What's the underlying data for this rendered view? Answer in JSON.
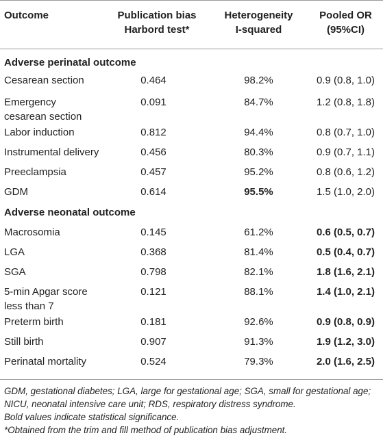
{
  "headers": {
    "outcome": "Outcome",
    "pubbias_1": "Publication bias",
    "pubbias_2": "Harbord test*",
    "het_1": "Heterogeneity",
    "het_2": "I-squared",
    "or_1": "Pooled OR",
    "or_2": "(95%CI)"
  },
  "sections": [
    {
      "title": "Adverse perinatal outcome",
      "rows": [
        {
          "outcome": [
            "Cesarean section"
          ],
          "bias": "0.464",
          "het": "98.2%",
          "or": "0.9 (0.8, 1.0)",
          "het_bold": false,
          "or_bold": false
        },
        {
          "outcome": [
            "Emergency",
            "cesarean section"
          ],
          "bias": "0.091",
          "het": "84.7%",
          "or": "1.2 (0.8, 1.8)",
          "het_bold": false,
          "or_bold": false
        },
        {
          "outcome": [
            "Labor induction"
          ],
          "bias": "0.812",
          "het": "94.4%",
          "or": "0.8 (0.7, 1.0)",
          "het_bold": false,
          "or_bold": false
        },
        {
          "outcome": [
            "Instrumental delivery"
          ],
          "bias": "0.456",
          "het": "80.3%",
          "or": "0.9 (0.7, 1.1)",
          "het_bold": false,
          "or_bold": false
        },
        {
          "outcome": [
            "Preeclampsia"
          ],
          "bias": "0.457",
          "het": "95.2%",
          "or": "0.8 (0.6, 1.2)",
          "het_bold": false,
          "or_bold": false
        },
        {
          "outcome": [
            "GDM"
          ],
          "bias": "0.614",
          "het": "95.5%",
          "or": "1.5 (1.0, 2.0)",
          "het_bold": true,
          "or_bold": false
        }
      ]
    },
    {
      "title": "Adverse neonatal outcome",
      "rows": [
        {
          "outcome": [
            "Macrosomia"
          ],
          "bias": "0.145",
          "het": "61.2%",
          "or": "0.6 (0.5, 0.7)",
          "het_bold": false,
          "or_bold": true
        },
        {
          "outcome": [
            "LGA"
          ],
          "bias": "0.368",
          "het": "81.4%",
          "or": "0.5 (0.4, 0.7)",
          "het_bold": false,
          "or_bold": true
        },
        {
          "outcome": [
            "SGA"
          ],
          "bias": "0.798",
          "het": "82.1%",
          "or": "1.8 (1.6, 2.1)",
          "het_bold": false,
          "or_bold": true
        },
        {
          "outcome": [
            "5-min Apgar score",
            "less than 7"
          ],
          "bias": "0.121",
          "het": "88.1%",
          "or": "1.4 (1.0, 2.1)",
          "het_bold": false,
          "or_bold": true
        },
        {
          "outcome": [
            "Preterm birth"
          ],
          "bias": "0.181",
          "het": "92.6%",
          "or": "0.9 (0.8, 0.9)",
          "het_bold": false,
          "or_bold": true
        },
        {
          "outcome": [
            "Still birth"
          ],
          "bias": "0.907",
          "het": "91.3%",
          "or": "1.9 (1.2, 3.0)",
          "het_bold": false,
          "or_bold": true
        },
        {
          "outcome": [
            "Perinatal mortality"
          ],
          "bias": "0.524",
          "het": "79.3%",
          "or": "2.0 (1.6, 2.5)",
          "het_bold": false,
          "or_bold": true
        }
      ]
    }
  ],
  "footnotes": [
    "GDM, gestational diabetes; LGA, large for gestational age; SGA, small for gestational age;",
    "NICU, neonatal intensive care unit; RDS, respiratory distress syndrome.",
    "Bold values indicate statistical significance.",
    "*Obtained from the trim and fill method of publication bias adjustment."
  ]
}
